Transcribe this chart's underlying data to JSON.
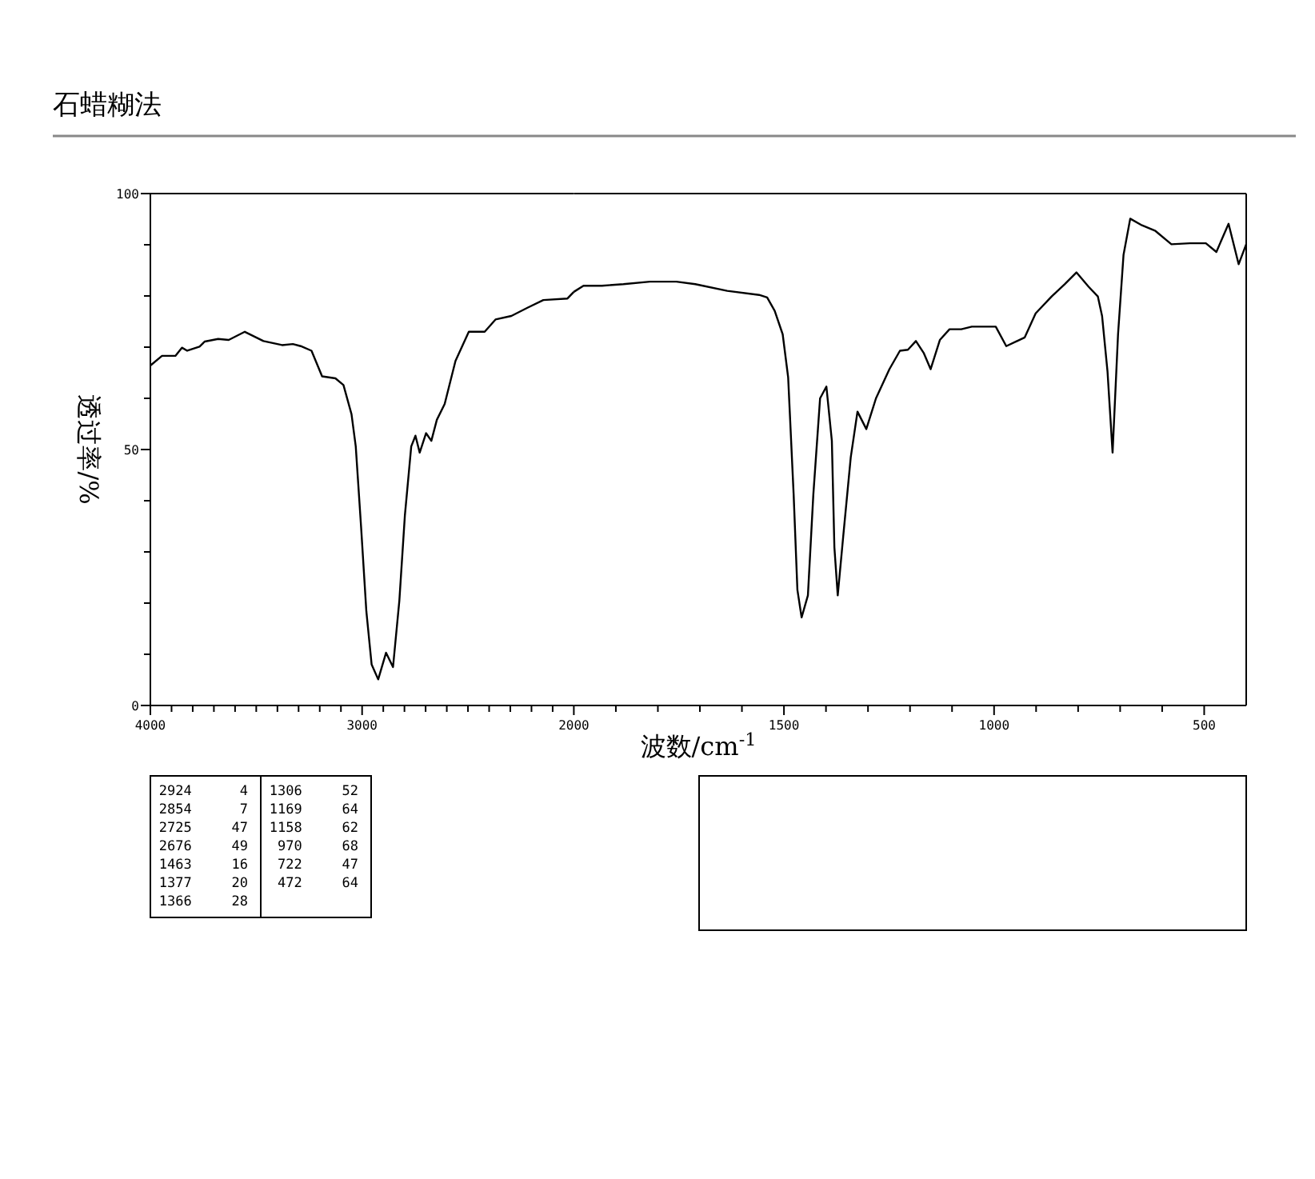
{
  "chart_data": [
    {
      "type": "line",
      "title": "石蜡糊法",
      "ylabel": "透过率/%",
      "xlim": [
        4000,
        2000
      ],
      "ylim": [
        0,
        100
      ],
      "xticks": [
        4000,
        {
          "value": 3900,
          "label": null
        },
        {
          "value": 3800,
          "label": null
        },
        {
          "value": 3700,
          "label": null
        },
        {
          "value": 3600,
          "label": null
        },
        {
          "value": 3500,
          "label": null
        },
        {
          "value": 3400,
          "label": null
        },
        {
          "value": 3300,
          "label": null
        },
        {
          "value": 3200,
          "label": null
        },
        {
          "value": 3100,
          "label": null
        },
        3000,
        {
          "value": 2900,
          "label": null
        },
        {
          "value": 2800,
          "label": null
        },
        {
          "value": 2700,
          "label": null
        },
        {
          "value": 2600,
          "label": null
        },
        {
          "value": 2500,
          "label": null
        },
        {
          "value": 2400,
          "label": null
        },
        {
          "value": 2300,
          "label": null
        },
        {
          "value": 2200,
          "label": null
        },
        {
          "value": 2100,
          "label": null
        },
        2000
      ],
      "yticks": [
        0,
        {
          "value": 10,
          "label": null
        },
        {
          "value": 20,
          "label": null
        },
        {
          "value": 30,
          "label": null
        },
        {
          "value": 40,
          "label": null
        },
        50,
        {
          "value": 60,
          "label": null
        },
        {
          "value": 70,
          "label": null
        },
        {
          "value": 80,
          "label": null
        },
        {
          "value": 90,
          "label": null
        },
        100
      ],
      "series": [
        {
          "color": "#000000",
          "x": [
            4000,
            3945,
            3882,
            3851,
            3826,
            3768,
            3743,
            3680,
            3630,
            3554,
            3466,
            3378,
            3327,
            3290,
            3239,
            3189,
            3126,
            3088,
            3050,
            3030,
            3005,
            2980,
            2955,
            2924,
            2887,
            2854,
            2824,
            2798,
            2768,
            2748,
            2728,
            2698,
            2673,
            2647,
            2610,
            2559,
            2496,
            2421,
            2370,
            2295,
            2219,
            2144,
            2030,
            2000
          ],
          "values": [
            66.4,
            68.3,
            68.3,
            69.9,
            69.3,
            70.1,
            71.1,
            71.6,
            71.4,
            73.0,
            71.2,
            70.4,
            70.6,
            70.2,
            69.3,
            64.3,
            63.9,
            62.6,
            56.9,
            50.6,
            35.0,
            18.4,
            8.0,
            5.1,
            10.3,
            7.5,
            20.5,
            37.1,
            50.6,
            52.7,
            49.4,
            53.2,
            51.7,
            55.8,
            58.9,
            67.3,
            73.0,
            73.0,
            75.4,
            76.1,
            77.7,
            79.2,
            79.5,
            80.8
          ]
        }
      ],
      "annotations": [
        "2924 4",
        "2854 7",
        "2725 47",
        "2676 49",
        "1463 16",
        "1377 20",
        "1366 28",
        "1306 52",
        "1169 64",
        "1158 62",
        "970 68",
        "722 47",
        "472 64"
      ]
    },
    {
      "type": "line",
      "xlabel": "波数/cm$^{-1}$",
      "xlim": [
        2000,
        400
      ],
      "ylim": [
        0,
        100
      ],
      "tick_labels": "x",
      "xticks": [
        {
          "value": 1900,
          "label": null
        },
        {
          "value": 1800,
          "label": null
        },
        {
          "value": 1700,
          "label": null
        },
        {
          "value": 1600,
          "label": null
        },
        1500,
        {
          "value": 1400,
          "label": null
        },
        {
          "value": 1300,
          "label": null
        },
        {
          "value": 1200,
          "label": null
        },
        {
          "value": 1100,
          "label": null
        },
        1000,
        {
          "value": 900,
          "label": null
        },
        {
          "value": 800,
          "label": null
        },
        {
          "value": 700,
          "label": null
        },
        {
          "value": 600,
          "label": null
        },
        500
      ],
      "series": [
        {
          "color": "#000000",
          "x": [
            2000,
            1977,
            1933,
            1882,
            1819,
            1756,
            1711,
            1635,
            1559,
            1540,
            1522,
            1503,
            1490,
            1477,
            1468,
            1458,
            1443,
            1430,
            1414,
            1399,
            1386,
            1380,
            1372,
            1359,
            1341,
            1325,
            1304,
            1281,
            1249,
            1224,
            1205,
            1186,
            1167,
            1151,
            1129,
            1106,
            1078,
            1053,
            996,
            971,
            927,
            901,
            863,
            832,
            804,
            775,
            753,
            743,
            730,
            718,
            705,
            692,
            676,
            648,
            616,
            578,
            534,
            496,
            471,
            442,
            418,
            400
          ],
          "values": [
            80.8,
            82.0,
            82.0,
            82.3,
            82.8,
            82.8,
            82.3,
            81.0,
            80.2,
            79.7,
            77.1,
            72.5,
            64.1,
            41.3,
            22.6,
            17.2,
            21.5,
            41.3,
            60.0,
            62.3,
            51.7,
            30.9,
            21.5,
            33.0,
            48.5,
            57.4,
            54.0,
            60.0,
            65.7,
            69.3,
            69.5,
            71.2,
            68.8,
            65.7,
            71.4,
            73.5,
            73.5,
            74.0,
            74.0,
            70.2,
            71.9,
            76.6,
            79.9,
            82.3,
            84.6,
            81.8,
            79.9,
            76.1,
            65.2,
            49.4,
            72.5,
            88.0,
            95.1,
            93.8,
            92.7,
            90.1,
            90.3,
            90.3,
            88.6,
            94.1,
            86.2,
            90.1
          ]
        }
      ]
    }
  ]
}
